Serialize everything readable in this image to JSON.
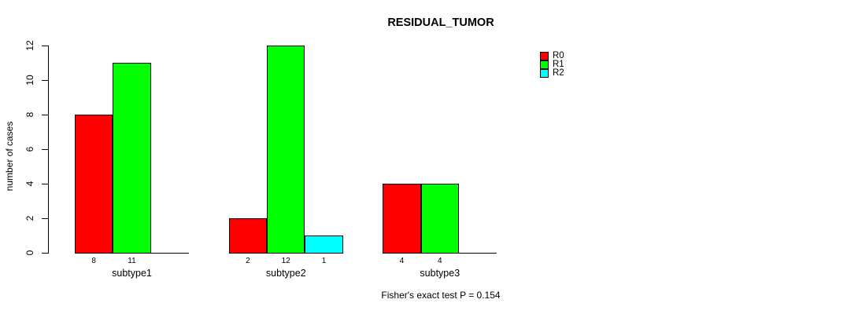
{
  "title": "RESIDUAL_TUMOR",
  "annotation": "Fisher's exact test P = 0.154",
  "chart_data": {
    "type": "bar",
    "title": "RESIDUAL_TUMOR",
    "categories": [
      "subtype1",
      "subtype2",
      "subtype3"
    ],
    "series": [
      {
        "name": "R0",
        "color": "#ff0000",
        "values": [
          8,
          2,
          4
        ]
      },
      {
        "name": "R1",
        "color": "#00ff00",
        "values": [
          11,
          12,
          4
        ]
      },
      {
        "name": "R2",
        "color": "#00ffff",
        "values": [
          null,
          1,
          null
        ]
      }
    ],
    "xlabel": "",
    "ylabel": "number of cases",
    "ylim": [
      0,
      12
    ],
    "yticks": [
      0,
      2,
      4,
      6,
      8,
      10,
      12
    ],
    "grid": false,
    "legend_position": "top-right",
    "bar_value_labels_shown": true,
    "footnote": "Fisher's exact test P = 0.154"
  }
}
